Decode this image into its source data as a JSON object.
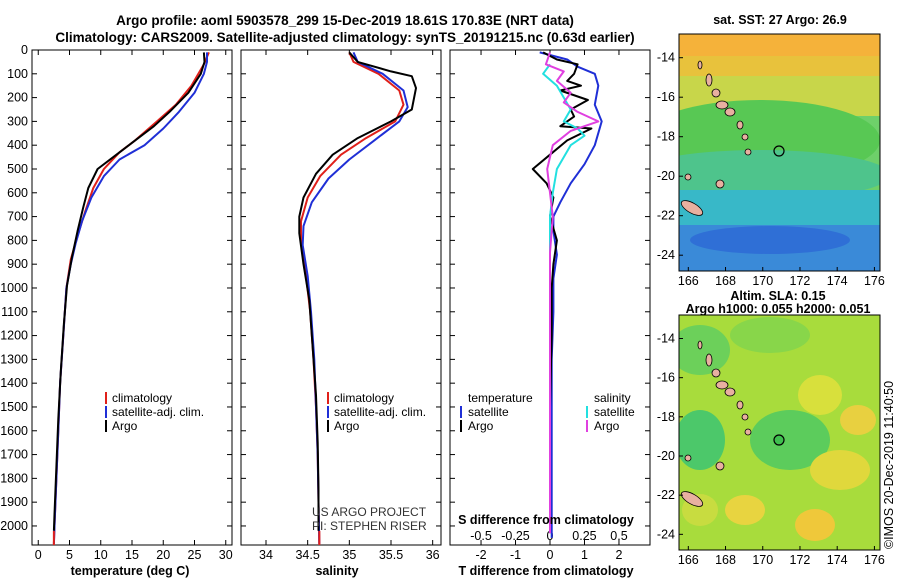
{
  "header": {
    "line1": "Argo profile: aoml 5903578_299 15-Dec-2019 18.61S 170.83E (NRT data)",
    "line2": "Climatology: CARS2009. Satellite-adjusted climatology: synTS_20191215.nc (0.63d earlier)"
  },
  "colors": {
    "climatology": "#e0201a",
    "satellite": "#1f2fd6",
    "argo": "#000000",
    "sal_satellite": "#22e0e0",
    "sal_argo": "#e040e0"
  },
  "chart_data": [
    {
      "id": "temperature",
      "type": "line",
      "xlabel": "temperature (deg C)",
      "ylabel": "depth",
      "xlim": [
        -1,
        31
      ],
      "ylim": [
        2080,
        0
      ],
      "xticks": [
        0,
        5,
        10,
        15,
        20,
        25,
        30
      ],
      "yticks": [
        0,
        100,
        200,
        300,
        400,
        500,
        600,
        700,
        800,
        900,
        1000,
        1100,
        1200,
        1300,
        1400,
        1500,
        1600,
        1700,
        1800,
        1900,
        2000
      ],
      "legend": [
        "climatology",
        "satellite-adj. clim.",
        "Argo"
      ],
      "series": [
        {
          "name": "climatology",
          "color": "#e0201a",
          "points": [
            [
              27.3,
              10
            ],
            [
              26.5,
              60
            ],
            [
              24.5,
              150
            ],
            [
              22,
              230
            ],
            [
              19,
              300
            ],
            [
              15.5,
              380
            ],
            [
              13,
              430
            ],
            [
              10.5,
              500
            ],
            [
              8.8,
              580
            ],
            [
              7.5,
              680
            ],
            [
              6.3,
              780
            ],
            [
              5.2,
              880
            ],
            [
              4.5,
              1000
            ],
            [
              4,
              1200
            ],
            [
              3.5,
              1400
            ],
            [
              3.2,
              1600
            ],
            [
              2.9,
              1800
            ],
            [
              2.6,
              2000
            ],
            [
              2.5,
              2075
            ]
          ]
        },
        {
          "name": "satellite-adj. clim.",
          "color": "#1f2fd6",
          "points": [
            [
              27,
              10
            ],
            [
              27,
              50
            ],
            [
              26.5,
              100
            ],
            [
              25,
              180
            ],
            [
              22.5,
              260
            ],
            [
              20,
              330
            ],
            [
              17,
              400
            ],
            [
              13,
              460
            ],
            [
              10.5,
              530
            ],
            [
              8.5,
              620
            ],
            [
              7,
              720
            ],
            [
              6,
              810
            ],
            [
              5.2,
              900
            ],
            [
              4.5,
              1000
            ],
            [
              4,
              1200
            ],
            [
              3.5,
              1400
            ],
            [
              3.2,
              1600
            ],
            [
              2.9,
              1800
            ],
            [
              2.6,
              2000
            ],
            [
              2.5,
              2075
            ]
          ]
        },
        {
          "name": "Argo",
          "color": "#000000",
          "points": [
            [
              26.5,
              10
            ],
            [
              26.6,
              50
            ],
            [
              26,
              100
            ],
            [
              24,
              180
            ],
            [
              21,
              260
            ],
            [
              18.5,
              320
            ],
            [
              15,
              390
            ],
            [
              12,
              450
            ],
            [
              9.5,
              500
            ],
            [
              8,
              580
            ],
            [
              7.2,
              660
            ],
            [
              6.3,
              760
            ],
            [
              5.4,
              870
            ],
            [
              4.6,
              990
            ],
            [
              4.1,
              1150
            ],
            [
              3.6,
              1350
            ],
            [
              3.2,
              1550
            ],
            [
              2.9,
              1750
            ],
            [
              2.6,
              1950
            ],
            [
              2.5,
              2020
            ]
          ]
        }
      ]
    },
    {
      "id": "salinity",
      "type": "line",
      "xlabel": "salinity",
      "ylabel": "depth",
      "xlim": [
        33.7,
        36.1
      ],
      "ylim": [
        2080,
        0
      ],
      "xticks": [
        34,
        34.5,
        35,
        35.5,
        36
      ],
      "legend": [
        "climatology",
        "satellite-adj. clim.",
        "Argo"
      ],
      "series": [
        {
          "name": "climatology",
          "color": "#e0201a",
          "points": [
            [
              35,
              10
            ],
            [
              35.05,
              50
            ],
            [
              35.35,
              100
            ],
            [
              35.6,
              170
            ],
            [
              35.65,
              230
            ],
            [
              35.55,
              300
            ],
            [
              35.2,
              370
            ],
            [
              34.9,
              440
            ],
            [
              34.65,
              530
            ],
            [
              34.5,
              620
            ],
            [
              34.42,
              720
            ],
            [
              34.42,
              800
            ],
            [
              34.48,
              950
            ],
            [
              34.53,
              1100
            ],
            [
              34.57,
              1300
            ],
            [
              34.6,
              1500
            ],
            [
              34.62,
              1700
            ],
            [
              34.63,
              1900
            ],
            [
              34.64,
              2075
            ]
          ]
        },
        {
          "name": "satellite-adj. clim.",
          "color": "#1f2fd6",
          "points": [
            [
              35.05,
              10
            ],
            [
              35.1,
              50
            ],
            [
              35.4,
              100
            ],
            [
              35.65,
              170
            ],
            [
              35.7,
              240
            ],
            [
              35.6,
              300
            ],
            [
              35.3,
              380
            ],
            [
              35,
              460
            ],
            [
              34.75,
              540
            ],
            [
              34.55,
              640
            ],
            [
              34.45,
              740
            ],
            [
              34.44,
              820
            ],
            [
              34.5,
              950
            ],
            [
              34.54,
              1100
            ],
            [
              34.58,
              1300
            ],
            [
              34.6,
              1500
            ],
            [
              34.62,
              1700
            ],
            [
              34.63,
              1900
            ],
            [
              34.64,
              2075
            ]
          ]
        },
        {
          "name": "Argo",
          "color": "#000000",
          "points": [
            [
              35,
              10
            ],
            [
              35.1,
              50
            ],
            [
              35.5,
              90
            ],
            [
              35.75,
              110
            ],
            [
              35.8,
              160
            ],
            [
              35.75,
              250
            ],
            [
              35.5,
              300
            ],
            [
              35.1,
              370
            ],
            [
              34.8,
              440
            ],
            [
              34.6,
              520
            ],
            [
              34.45,
              620
            ],
            [
              34.4,
              700
            ],
            [
              34.4,
              770
            ],
            [
              34.45,
              900
            ],
            [
              34.52,
              1050
            ],
            [
              34.56,
              1250
            ],
            [
              34.6,
              1450
            ],
            [
              34.62,
              1650
            ],
            [
              34.63,
              1850
            ],
            [
              34.63,
              2020
            ]
          ]
        }
      ],
      "annotations": [
        "US ARGO PROJECT",
        "PI: STEPHEN RISER"
      ]
    },
    {
      "id": "differences",
      "type": "line",
      "xlabel": "T difference from climatology",
      "xlabel2": "S difference from climatology",
      "xlim": [
        -2.9,
        2.9
      ],
      "ylim": [
        2080,
        0
      ],
      "xticks": [
        -2,
        -1,
        0,
        1,
        2
      ],
      "xticks_top": [
        -0.5,
        -0.25,
        0,
        0.25,
        0.5
      ],
      "xticklabels_top": [
        "-0.5",
        "-0.25",
        "0",
        "0.25",
        "0.5"
      ],
      "legend_temperature_title": "temperature",
      "legend_salinity_title": "salinity",
      "legend_temperature": [
        "satellite",
        "Argo"
      ],
      "legend_salinity": [
        "satellite",
        "Argo"
      ],
      "series": [
        {
          "name": "T satellite",
          "color": "#1f2fd6",
          "points": [
            [
              -0.3,
              10
            ],
            [
              0.5,
              40
            ],
            [
              0.8,
              70
            ],
            [
              1.3,
              100
            ],
            [
              1.4,
              150
            ],
            [
              1.3,
              230
            ],
            [
              1.5,
              300
            ],
            [
              1.3,
              400
            ],
            [
              1,
              480
            ],
            [
              0.6,
              560
            ],
            [
              0.3,
              640
            ],
            [
              0.1,
              700
            ],
            [
              0.1,
              760
            ],
            [
              0.2,
              860
            ],
            [
              0.1,
              960
            ],
            [
              0.1,
              1100
            ],
            [
              0.05,
              1300
            ],
            [
              0.05,
              1600
            ],
            [
              0.05,
              2050
            ]
          ]
        },
        {
          "name": "T Argo",
          "color": "#000000",
          "points": [
            [
              -0.2,
              10
            ],
            [
              0.2,
              40
            ],
            [
              0.8,
              60
            ],
            [
              0.7,
              100
            ],
            [
              0.5,
              130
            ],
            [
              0.9,
              150
            ],
            [
              0.3,
              170
            ],
            [
              1.1,
              210
            ],
            [
              0.6,
              250
            ],
            [
              0.7,
              280
            ],
            [
              0.3,
              320
            ],
            [
              1.2,
              330
            ],
            [
              0.5,
              380
            ],
            [
              0,
              440
            ],
            [
              -0.5,
              500
            ],
            [
              -0.1,
              560
            ],
            [
              0.1,
              620
            ],
            [
              0,
              700
            ],
            [
              0.2,
              800
            ],
            [
              0.1,
              900
            ],
            [
              0.05,
              1000
            ],
            [
              0.05,
              1200
            ],
            [
              0,
              1500
            ],
            [
              0,
              1800
            ],
            [
              0,
              2030
            ]
          ]
        },
        {
          "name": "S satellite",
          "color": "#22e0e0",
          "points": [
            [
              0,
              60
            ],
            [
              -0.05,
              100
            ],
            [
              0.05,
              150
            ],
            [
              0.1,
              200
            ],
            [
              0.15,
              250
            ],
            [
              0.1,
              300
            ],
            [
              0.2,
              330
            ],
            [
              0.25,
              360
            ],
            [
              0.15,
              400
            ],
            [
              0.1,
              450
            ],
            [
              0.05,
              500
            ],
            [
              0.02,
              600
            ],
            [
              0,
              700
            ],
            [
              0,
              800
            ],
            [
              0,
              900
            ],
            [
              0,
              1050
            ]
          ]
        },
        {
          "name": "S Argo",
          "color": "#e040e0",
          "points": [
            [
              0,
              10
            ],
            [
              -0.03,
              60
            ],
            [
              0.1,
              90
            ],
            [
              0.05,
              130
            ],
            [
              0.15,
              180
            ],
            [
              0.1,
              220
            ],
            [
              0.2,
              260
            ],
            [
              0.35,
              300
            ],
            [
              0.15,
              340
            ],
            [
              0.02,
              400
            ],
            [
              -0.02,
              500
            ],
            [
              0,
              600
            ],
            [
              0.02,
              700
            ],
            [
              0,
              850
            ],
            [
              0,
              1000
            ],
            [
              0,
              1200
            ],
            [
              0,
              1500
            ],
            [
              0,
              1800
            ],
            [
              0,
              2030
            ]
          ]
        }
      ]
    },
    {
      "id": "sst_map",
      "type": "heatmap",
      "title": "sat. SST: 27 Argo: 26.9",
      "xlim": [
        165.5,
        176.3
      ],
      "ylim": [
        -24.8,
        -12.8
      ],
      "xticks": [
        166,
        168,
        170,
        172,
        174,
        176
      ],
      "yticks": [
        -14,
        -16,
        -18,
        -20,
        -22,
        -24
      ],
      "argo_position": {
        "lon": 170.83,
        "lat": -18.61
      },
      "sst_range": [
        25.3,
        28.5
      ]
    },
    {
      "id": "sla_map",
      "type": "heatmap",
      "title": "Altim. SLA: 0.15",
      "subtitle": "Argo h1000: 0.055 h2000: 0.051",
      "xlim": [
        165.5,
        176.3
      ],
      "ylim": [
        -24.8,
        -12.8
      ],
      "xticks": [
        166,
        168,
        170,
        172,
        174,
        176
      ],
      "yticks": [
        -14,
        -16,
        -18,
        -20,
        -22,
        -24
      ],
      "argo_position": {
        "lon": 170.83,
        "lat": -18.61
      }
    }
  ],
  "watermark": "©IMOS 20-Dec-2019 11:40:50"
}
